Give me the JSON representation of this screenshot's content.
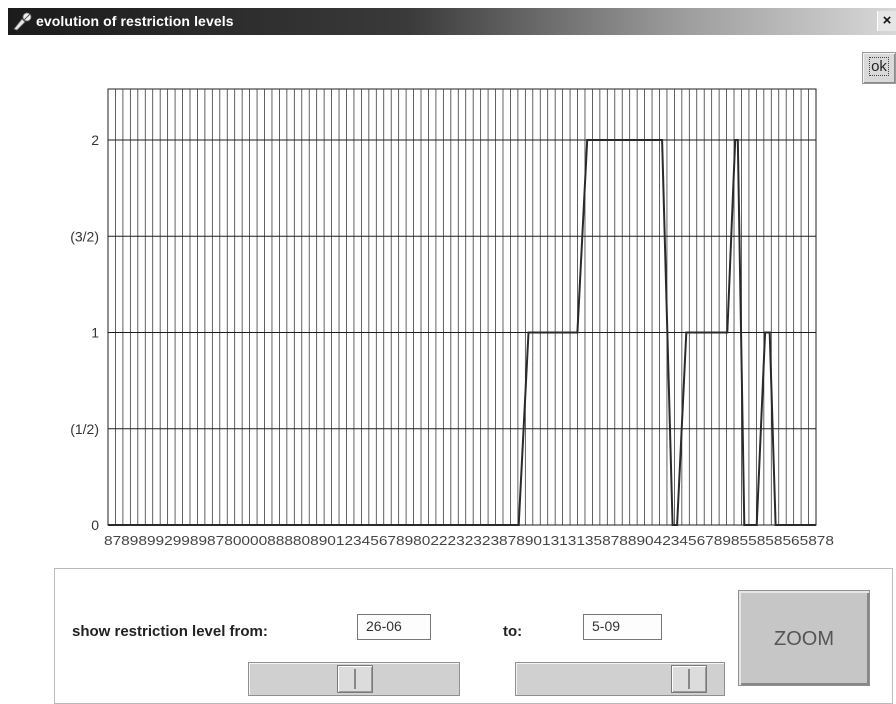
{
  "window": {
    "title": "evolution of restriction levels",
    "close_label": "×",
    "ok_label": "ok"
  },
  "controls": {
    "from_label": "show restriction level from:",
    "from_value": "26-06",
    "to_label": "to:",
    "to_value": "5-09",
    "zoom_label": "ZOOM",
    "from_slider_level": 0.5,
    "to_slider_level": 0.9
  },
  "chart_data": {
    "type": "line",
    "title": "",
    "xlabel": "",
    "ylabel": "",
    "ylim": [
      0,
      2
    ],
    "yticks": [
      0,
      0.5,
      1,
      1.5,
      2
    ],
    "ytick_labels": [
      "0",
      "(1/2)",
      "1",
      "(3/2)",
      "2"
    ],
    "xtick_labels_raw": "8789899299898780000888808901234567898022232323878901313135878890423456789855858565878",
    "grid": true,
    "series": [
      {
        "color": "#2a2a2a",
        "points": [
          [
            0,
            0
          ],
          [
            63,
            0
          ],
          [
            64.5,
            1
          ],
          [
            72,
            1
          ],
          [
            73.5,
            2
          ],
          [
            85,
            2
          ],
          [
            86.6,
            0
          ],
          [
            87.3,
            0
          ],
          [
            88.7,
            1
          ],
          [
            95,
            1
          ],
          [
            96.2,
            2
          ],
          [
            96.6,
            2
          ],
          [
            97.6,
            0
          ],
          [
            99.5,
            0
          ],
          [
            100.8,
            1
          ],
          [
            101.5,
            1
          ],
          [
            102.4,
            0
          ],
          [
            108.6,
            0
          ]
        ]
      }
    ],
    "x_extent": [
      0,
      108.6
    ]
  }
}
